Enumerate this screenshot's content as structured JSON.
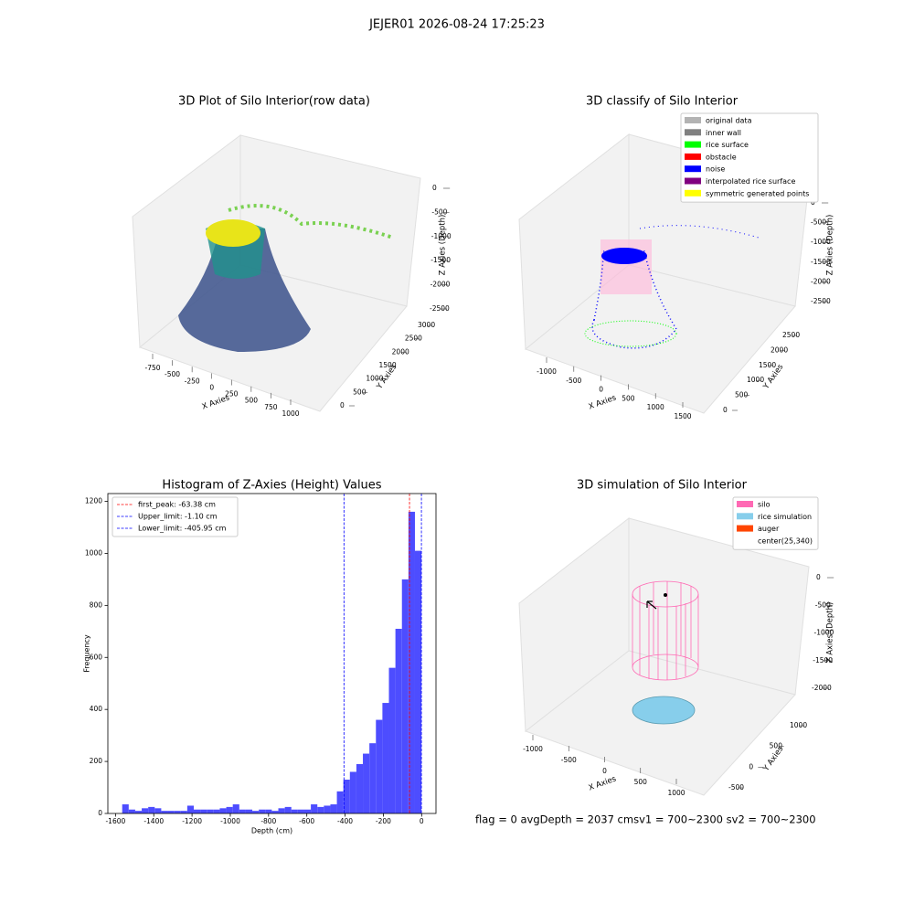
{
  "suptitle": "JEJER01 2026-08-24 17:25:23",
  "chart_data": [
    {
      "type": "scatter3d",
      "title": "3D Plot of Silo Interior(row data)",
      "xlabel": "X Axies",
      "ylabel": "Y Axies",
      "zlabel": "Z Axies (Depth)",
      "xticks": [
        -750,
        -500,
        -250,
        0,
        250,
        500,
        750,
        1000
      ],
      "yticks": [
        0,
        500,
        1000,
        1500,
        2000,
        2500,
        3000
      ],
      "zticks": [
        0,
        -500,
        -1000,
        -1500,
        -2000,
        -2500
      ]
    },
    {
      "type": "scatter3d",
      "title": "3D classify of Silo Interior",
      "xlabel": "X Axies",
      "ylabel": "Y Axies",
      "zlabel": "Z Axies (Depth)",
      "xticks": [
        -1000,
        -500,
        0,
        500,
        1000,
        1500
      ],
      "yticks": [
        0,
        500,
        1000,
        1500,
        2000,
        2500
      ],
      "zticks": [
        0,
        -500,
        -1000,
        -1500,
        -2000,
        -2500
      ],
      "legend": [
        {
          "name": "original data",
          "color": "#b3b3b3"
        },
        {
          "name": "inner wall",
          "color": "#808080"
        },
        {
          "name": "rice surface",
          "color": "#00ff00"
        },
        {
          "name": "obstacle",
          "color": "#ff0000"
        },
        {
          "name": "noise",
          "color": "#0000ff"
        },
        {
          "name": "interpolated rice surface",
          "color": "#800080"
        },
        {
          "name": "symmetric generated points",
          "color": "#ffff00"
        }
      ]
    },
    {
      "type": "histogram",
      "title": "Histogram of Z-Axies (Height) Values",
      "xlabel": "Depth (cm)",
      "ylabel": "Frequency",
      "color": "#4d4dff",
      "bins": [
        -1565,
        -1531,
        -1497,
        -1463,
        -1429,
        -1395,
        -1361,
        -1327,
        -1293,
        -1259,
        -1225,
        -1191,
        -1157,
        -1123,
        -1089,
        -1055,
        -1021,
        -987,
        -953,
        -919,
        -885,
        -851,
        -817,
        -783,
        -749,
        -715,
        -681,
        -647,
        -613,
        -579,
        -545,
        -511,
        -477,
        -443,
        -409,
        -375,
        -341,
        -307,
        -273,
        -239,
        -205,
        -171,
        -137,
        -103,
        -69,
        -35,
        -1
      ],
      "values": [
        35,
        15,
        10,
        20,
        25,
        20,
        10,
        10,
        10,
        10,
        30,
        15,
        15,
        15,
        15,
        20,
        25,
        35,
        15,
        15,
        10,
        15,
        15,
        10,
        20,
        25,
        15,
        15,
        15,
        35,
        25,
        30,
        35,
        85,
        130,
        160,
        190,
        230,
        270,
        360,
        425,
        560,
        710,
        900,
        1160,
        1010
      ],
      "xlim": [
        -1640,
        75
      ],
      "ylim": [
        0,
        1230
      ],
      "xticks": [
        -1600,
        -1400,
        -1200,
        -1000,
        -800,
        -600,
        -400,
        -200,
        0
      ],
      "yticks": [
        0,
        200,
        400,
        600,
        800,
        1000,
        1200
      ],
      "vlines": [
        {
          "name": "first_peak: -63.38 cm",
          "value": -63.38,
          "color": "#ff0000"
        },
        {
          "name": "Upper_limit: -1.10 cm",
          "value": -1.1,
          "color": "#0000ff"
        },
        {
          "name": "Lower_limit: -405.95 cm",
          "value": -405.95,
          "color": "#0000ff"
        }
      ]
    },
    {
      "type": "surface3d",
      "title": "3D simulation of Silo Interior",
      "xlabel": "X Axies",
      "ylabel": "Y Axies",
      "zlabel": "Z Axies (Depth)",
      "xticks": [
        -1000,
        -500,
        0,
        500,
        1000
      ],
      "yticks": [
        -500,
        0,
        500,
        1000
      ],
      "zticks": [
        0,
        -500,
        -1000,
        -1500,
        -2000
      ],
      "legend": [
        {
          "name": "silo",
          "color": "#ff69b4"
        },
        {
          "name": "rice simulation",
          "color": "#87ceeb"
        },
        {
          "name": "auger",
          "color": "#ff4500"
        },
        {
          "name": "center(25,340)",
          "color": "#ffffff"
        }
      ]
    }
  ],
  "footer": "flag = 0     avgDepth = 2037 cmsv1 = 700~2300  sv2 = 700~2300"
}
